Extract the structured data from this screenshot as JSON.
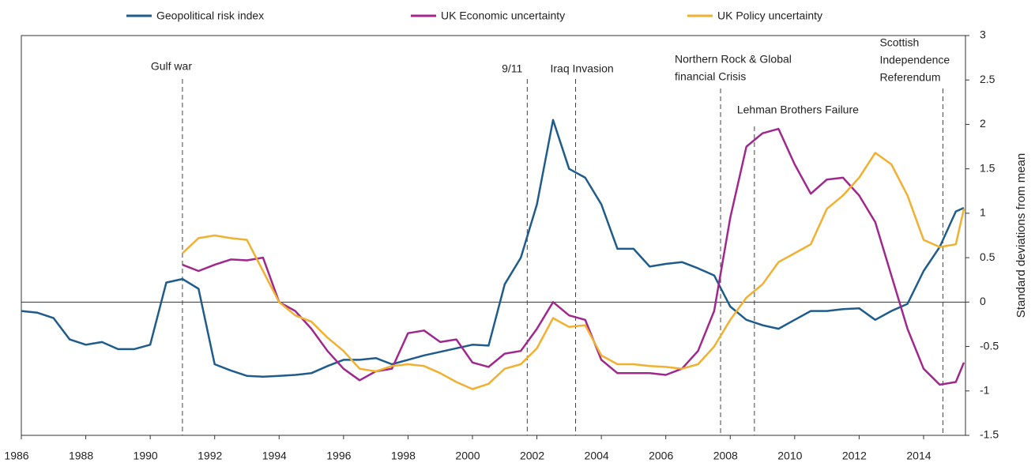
{
  "chart_data": {
    "type": "line",
    "y_label": "Standard deviations from mean",
    "x": [
      1986.0,
      1986.5,
      1987.0,
      1987.5,
      1988.0,
      1988.5,
      1989.0,
      1989.5,
      1990.0,
      1990.5,
      1991.0,
      1991.5,
      1992.0,
      1992.5,
      1993.0,
      1993.5,
      1994.0,
      1994.5,
      1995.0,
      1995.5,
      1996.0,
      1996.5,
      1997.0,
      1997.5,
      1998.0,
      1998.5,
      1999.0,
      1999.5,
      2000.0,
      2000.5,
      2001.0,
      2001.5,
      2002.0,
      2002.5,
      2003.0,
      2003.5,
      2004.0,
      2004.5,
      2005.0,
      2005.5,
      2006.0,
      2006.5,
      2007.0,
      2007.5,
      2008.0,
      2008.5,
      2009.0,
      2009.5,
      2010.0,
      2010.5,
      2011.0,
      2011.5,
      2012.0,
      2012.5,
      2013.0,
      2013.5,
      2014.0,
      2014.5,
      2015.0,
      2015.25
    ],
    "series": [
      {
        "name": "Geopolitical risk index",
        "color": "#1f5c8c",
        "values": [
          -0.1,
          -0.12,
          -0.18,
          -0.42,
          -0.48,
          -0.45,
          -0.53,
          -0.53,
          -0.48,
          0.22,
          0.26,
          0.15,
          -0.7,
          -0.77,
          -0.83,
          -0.84,
          -0.83,
          -0.82,
          -0.8,
          -0.72,
          -0.65,
          -0.65,
          -0.63,
          -0.7,
          -0.65,
          -0.6,
          -0.56,
          -0.52,
          -0.48,
          -0.49,
          0.2,
          0.5,
          1.1,
          2.05,
          1.5,
          1.4,
          1.1,
          0.6,
          0.6,
          0.4,
          0.43,
          0.45,
          0.38,
          0.3,
          -0.05,
          -0.2,
          -0.26,
          -0.3,
          -0.2,
          -0.1,
          -0.1,
          -0.08,
          -0.07,
          -0.2,
          -0.1,
          -0.02,
          0.35,
          0.62,
          1.02,
          1.06
        ]
      },
      {
        "name": "UK Economic uncertainty",
        "color": "#a0288c",
        "values": [
          null,
          null,
          null,
          null,
          null,
          null,
          null,
          null,
          null,
          null,
          0.42,
          0.35,
          0.42,
          0.48,
          0.47,
          0.5,
          0.0,
          -0.1,
          -0.3,
          -0.55,
          -0.75,
          -0.88,
          -0.78,
          -0.75,
          -0.35,
          -0.32,
          -0.45,
          -0.42,
          -0.68,
          -0.73,
          -0.58,
          -0.55,
          -0.3,
          0.0,
          -0.15,
          -0.2,
          -0.65,
          -0.8,
          -0.8,
          -0.8,
          -0.82,
          -0.75,
          -0.55,
          -0.1,
          0.95,
          1.75,
          1.9,
          1.95,
          1.55,
          1.22,
          1.38,
          1.4,
          1.2,
          0.9,
          0.3,
          -0.3,
          -0.75,
          -0.93,
          -0.9,
          -0.68
        ]
      },
      {
        "name": "UK Policy uncertainty",
        "color": "#f0b030",
        "values": [
          null,
          null,
          null,
          null,
          null,
          null,
          null,
          null,
          null,
          null,
          0.55,
          0.72,
          0.75,
          0.72,
          0.7,
          0.35,
          0.0,
          -0.15,
          -0.22,
          -0.4,
          -0.55,
          -0.75,
          -0.78,
          -0.72,
          -0.7,
          -0.72,
          -0.8,
          -0.9,
          -0.98,
          -0.92,
          -0.75,
          -0.7,
          -0.52,
          -0.18,
          -0.28,
          -0.26,
          -0.6,
          -0.7,
          -0.7,
          -0.72,
          -0.73,
          -0.75,
          -0.7,
          -0.5,
          -0.2,
          0.05,
          0.2,
          0.45,
          0.55,
          0.65,
          1.05,
          1.2,
          1.4,
          1.68,
          1.55,
          1.2,
          0.7,
          0.62,
          0.65,
          1.05
        ]
      }
    ],
    "annotations": [
      {
        "lines": [
          "Gulf war"
        ],
        "x": 1991.0
      },
      {
        "lines": [
          "9/11"
        ],
        "x": 2001.7
      },
      {
        "lines": [
          "Iraq Invasion"
        ],
        "x": 2003.2
      },
      {
        "lines": [
          "Northern Rock & Global",
          "financial Crisis"
        ],
        "x": 2007.7
      },
      {
        "lines": [
          "Lehman Brothers Failure"
        ],
        "x": 2008.75
      },
      {
        "lines": [
          "Scottish",
          "Independence",
          "Referendum"
        ],
        "x": 2014.6
      }
    ],
    "xlim": [
      1986,
      2015.3
    ],
    "xticks": [
      1986,
      1988,
      1990,
      1992,
      1994,
      1996,
      1998,
      2000,
      2002,
      2004,
      2006,
      2008,
      2010,
      2012,
      2014
    ],
    "ylim": [
      -1.5,
      3
    ],
    "yticks": [
      -1.5,
      -1,
      -0.5,
      0,
      0.5,
      1,
      1.5,
      2,
      2.5,
      3
    ]
  }
}
